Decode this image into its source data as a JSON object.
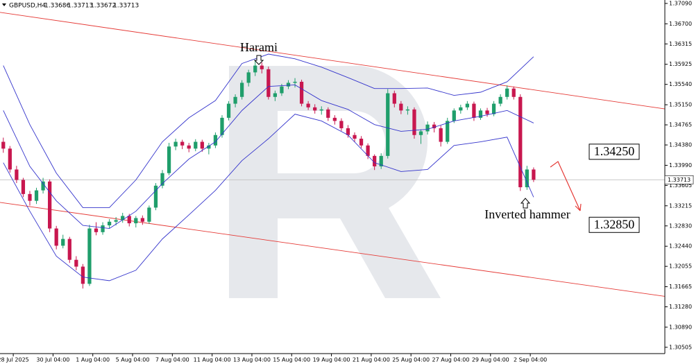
{
  "chart_data": {
    "type": "candlestick",
    "title": "GBPUSD,H4",
    "header_values": [
      1.33686,
      1.33713,
      1.33672,
      1.33713
    ],
    "xlim": [
      -0.5,
      99.8
    ],
    "xticks": [
      {
        "value": 1.5,
        "label": "28 Jul 2025"
      },
      {
        "value": 7.5,
        "label": "30 Jul 04:00"
      },
      {
        "value": 13.5,
        "label": "1 Aug 04:00"
      },
      {
        "value": 19.5,
        "label": "5 Aug 04:00"
      },
      {
        "value": 25.5,
        "label": "7 Aug 04:00"
      },
      {
        "value": 31.5,
        "label": "11 Aug 04:00"
      },
      {
        "value": 37.5,
        "label": "13 Aug 04:00"
      },
      {
        "value": 43.5,
        "label": "15 Aug 04:00"
      },
      {
        "value": 49.5,
        "label": "19 Aug 04:00"
      },
      {
        "value": 55.5,
        "label": "21 Aug 04:00"
      },
      {
        "value": 61.5,
        "label": "25 Aug 04:00"
      },
      {
        "value": 67.5,
        "label": "27 Aug 04:00"
      },
      {
        "value": 73.5,
        "label": "29 Aug 04:00"
      },
      {
        "value": 79.5,
        "label": "2 Sep 04:00"
      }
    ],
    "ylim": [
      1.30384,
      1.37156
    ],
    "yticks": [
      {
        "value": 1.3709,
        "label": "1.37090"
      },
      {
        "value": 1.367,
        "label": "1.36700"
      },
      {
        "value": 1.36315,
        "label": "1.36315"
      },
      {
        "value": 1.35925,
        "label": "1.35925"
      },
      {
        "value": 1.3554,
        "label": "1.35540"
      },
      {
        "value": 1.3515,
        "label": "1.35150"
      },
      {
        "value": 1.34765,
        "label": "1.34765"
      },
      {
        "value": 1.3438,
        "label": "1.34380"
      },
      {
        "value": 1.3399,
        "label": "1.33990"
      },
      {
        "value": 1.33605,
        "label": "1.33605"
      },
      {
        "value": 1.33215,
        "label": "1.33215"
      },
      {
        "value": 1.3283,
        "label": "1.32830"
      },
      {
        "value": 1.3244,
        "label": "1.32440"
      },
      {
        "value": 1.32055,
        "label": "1.32055"
      },
      {
        "value": 1.31665,
        "label": "1.31665"
      },
      {
        "value": 1.3128,
        "label": "1.31280"
      },
      {
        "value": 1.3089,
        "label": "1.30890"
      },
      {
        "value": 1.30505,
        "label": "1.30505"
      }
    ],
    "up_color": "#1f9e6b",
    "down_color": "#c8174f",
    "candles": {
      "open": [
        1.3444,
        1.3431,
        1.3391,
        1.3371,
        1.3344,
        1.3331,
        1.3351,
        1.3368,
        1.3278,
        1.3245,
        1.3258,
        1.3218,
        1.3205,
        1.3172,
        1.3278,
        1.3271,
        1.3284,
        1.3291,
        1.3294,
        1.3302,
        1.3288,
        1.3298,
        1.3291,
        1.3318,
        1.336,
        1.3384,
        1.3435,
        1.3444,
        1.3437,
        1.3431,
        1.3444,
        1.3431,
        1.3437,
        1.3457,
        1.349,
        1.3517,
        1.353,
        1.3557,
        1.3577,
        1.359,
        1.3583,
        1.353,
        1.3537,
        1.355,
        1.3557,
        1.3559,
        1.3517,
        1.351,
        1.3504,
        1.3506,
        1.349,
        1.3484,
        1.347,
        1.3457,
        1.345,
        1.3437,
        1.3417,
        1.3397,
        1.3417,
        1.3537,
        1.3517,
        1.3504,
        1.3506,
        1.3457,
        1.3464,
        1.3477,
        1.347,
        1.3444,
        1.3484,
        1.3504,
        1.351,
        1.3517,
        1.349,
        1.3504,
        1.3497,
        1.3517,
        1.353,
        1.3546,
        1.353,
        1.3357,
        1.3391
      ],
      "high": [
        1.3452,
        1.3436,
        1.3398,
        1.3375,
        1.335,
        1.3356,
        1.3375,
        1.3372,
        1.3283,
        1.3266,
        1.3262,
        1.3225,
        1.321,
        1.3285,
        1.329,
        1.329,
        1.3296,
        1.33,
        1.3308,
        1.3306,
        1.3302,
        1.3303,
        1.3322,
        1.3365,
        1.339,
        1.3442,
        1.345,
        1.3448,
        1.3442,
        1.3449,
        1.3448,
        1.3442,
        1.3462,
        1.3495,
        1.3522,
        1.3535,
        1.3562,
        1.3582,
        1.36,
        1.3596,
        1.3588,
        1.3542,
        1.3555,
        1.3562,
        1.3566,
        1.3563,
        1.3522,
        1.3516,
        1.3512,
        1.351,
        1.3495,
        1.3489,
        1.3476,
        1.3462,
        1.3455,
        1.3441,
        1.342,
        1.3422,
        1.3545,
        1.3542,
        1.3522,
        1.3512,
        1.351,
        1.3468,
        1.3483,
        1.3482,
        1.3475,
        1.349,
        1.3508,
        1.3515,
        1.3522,
        1.3521,
        1.3508,
        1.3509,
        1.3522,
        1.3535,
        1.3552,
        1.355,
        1.3535,
        1.3398,
        1.3395
      ],
      "low": [
        1.3423,
        1.3385,
        1.3365,
        1.3338,
        1.3322,
        1.3325,
        1.3345,
        1.3271,
        1.3238,
        1.324,
        1.3212,
        1.3198,
        1.3163,
        1.3168,
        1.3265,
        1.3266,
        1.3278,
        1.3284,
        1.3289,
        1.3282,
        1.328,
        1.3285,
        1.3287,
        1.3313,
        1.3355,
        1.338,
        1.3428,
        1.343,
        1.3424,
        1.3426,
        1.3425,
        1.342,
        1.3432,
        1.3452,
        1.3485,
        1.351,
        1.3525,
        1.355,
        1.357,
        1.3575,
        1.3525,
        1.3522,
        1.3532,
        1.3545,
        1.3548,
        1.3512,
        1.3505,
        1.3498,
        1.3496,
        1.3484,
        1.3477,
        1.3465,
        1.3452,
        1.3444,
        1.3432,
        1.3411,
        1.339,
        1.3392,
        1.3412,
        1.351,
        1.3497,
        1.3496,
        1.345,
        1.344,
        1.3458,
        1.3462,
        1.3435,
        1.344,
        1.348,
        1.3498,
        1.3505,
        1.3484,
        1.3486,
        1.3492,
        1.3493,
        1.3512,
        1.3525,
        1.3525,
        1.335,
        1.3352,
        1.3367
      ],
      "close": [
        1.3431,
        1.3391,
        1.3371,
        1.3344,
        1.3331,
        1.3351,
        1.3368,
        1.3278,
        1.3245,
        1.3258,
        1.3218,
        1.3205,
        1.3172,
        1.3278,
        1.3271,
        1.3284,
        1.3291,
        1.3294,
        1.3302,
        1.3288,
        1.3298,
        1.3291,
        1.3318,
        1.336,
        1.3384,
        1.3435,
        1.3444,
        1.3437,
        1.3431,
        1.3444,
        1.3431,
        1.3437,
        1.3457,
        1.349,
        1.3517,
        1.353,
        1.3557,
        1.3577,
        1.359,
        1.3583,
        1.353,
        1.3537,
        1.355,
        1.3557,
        1.3559,
        1.3517,
        1.351,
        1.3504,
        1.3506,
        1.349,
        1.3484,
        1.347,
        1.3457,
        1.345,
        1.3437,
        1.3417,
        1.3397,
        1.3417,
        1.3537,
        1.3517,
        1.3504,
        1.3506,
        1.3457,
        1.3464,
        1.3477,
        1.347,
        1.3444,
        1.3484,
        1.3504,
        1.351,
        1.3517,
        1.349,
        1.3504,
        1.3497,
        1.3517,
        1.353,
        1.3546,
        1.353,
        1.3357,
        1.3391,
        1.33713
      ]
    },
    "bands": {
      "color": "#3333cc",
      "x": [
        0,
        4,
        8,
        12,
        16,
        20,
        24,
        28,
        32,
        36,
        40,
        44,
        48,
        52,
        56,
        60,
        64,
        68,
        72,
        76,
        80
      ],
      "upper": [
        1.359,
        1.3477,
        1.3384,
        1.3318,
        1.3318,
        1.3371,
        1.3444,
        1.349,
        1.3523,
        1.3594,
        1.3612,
        1.3603,
        1.3587,
        1.3567,
        1.3546,
        1.3546,
        1.3547,
        1.3533,
        1.3539,
        1.3559,
        1.3607
      ],
      "middle": [
        1.3504,
        1.3397,
        1.3331,
        1.3284,
        1.3278,
        1.3311,
        1.3364,
        1.3411,
        1.3444,
        1.3504,
        1.355,
        1.3553,
        1.3523,
        1.3506,
        1.3477,
        1.3464,
        1.3468,
        1.3484,
        1.3493,
        1.3504,
        1.348
      ],
      "lower": [
        1.3404,
        1.3311,
        1.3225,
        1.3185,
        1.3178,
        1.3198,
        1.3258,
        1.3304,
        1.3351,
        1.3408,
        1.345,
        1.3497,
        1.3484,
        1.3457,
        1.3404,
        1.3387,
        1.3391,
        1.3437,
        1.3444,
        1.3453,
        1.3338
      ]
    },
    "channels": {
      "color": "#e53935",
      "x": [
        -0.5,
        99.8
      ],
      "upper": [
        1.3692,
        1.3507
      ],
      "lower": [
        1.3328,
        1.3148
      ]
    },
    "current_price": 1.33713,
    "levels": [
      {
        "value": 1.3425,
        "label": "1.34250"
      },
      {
        "value": 1.3285,
        "label": "1.32850"
      }
    ],
    "annotations": [
      "Harami",
      "Inverted hammer"
    ]
  }
}
